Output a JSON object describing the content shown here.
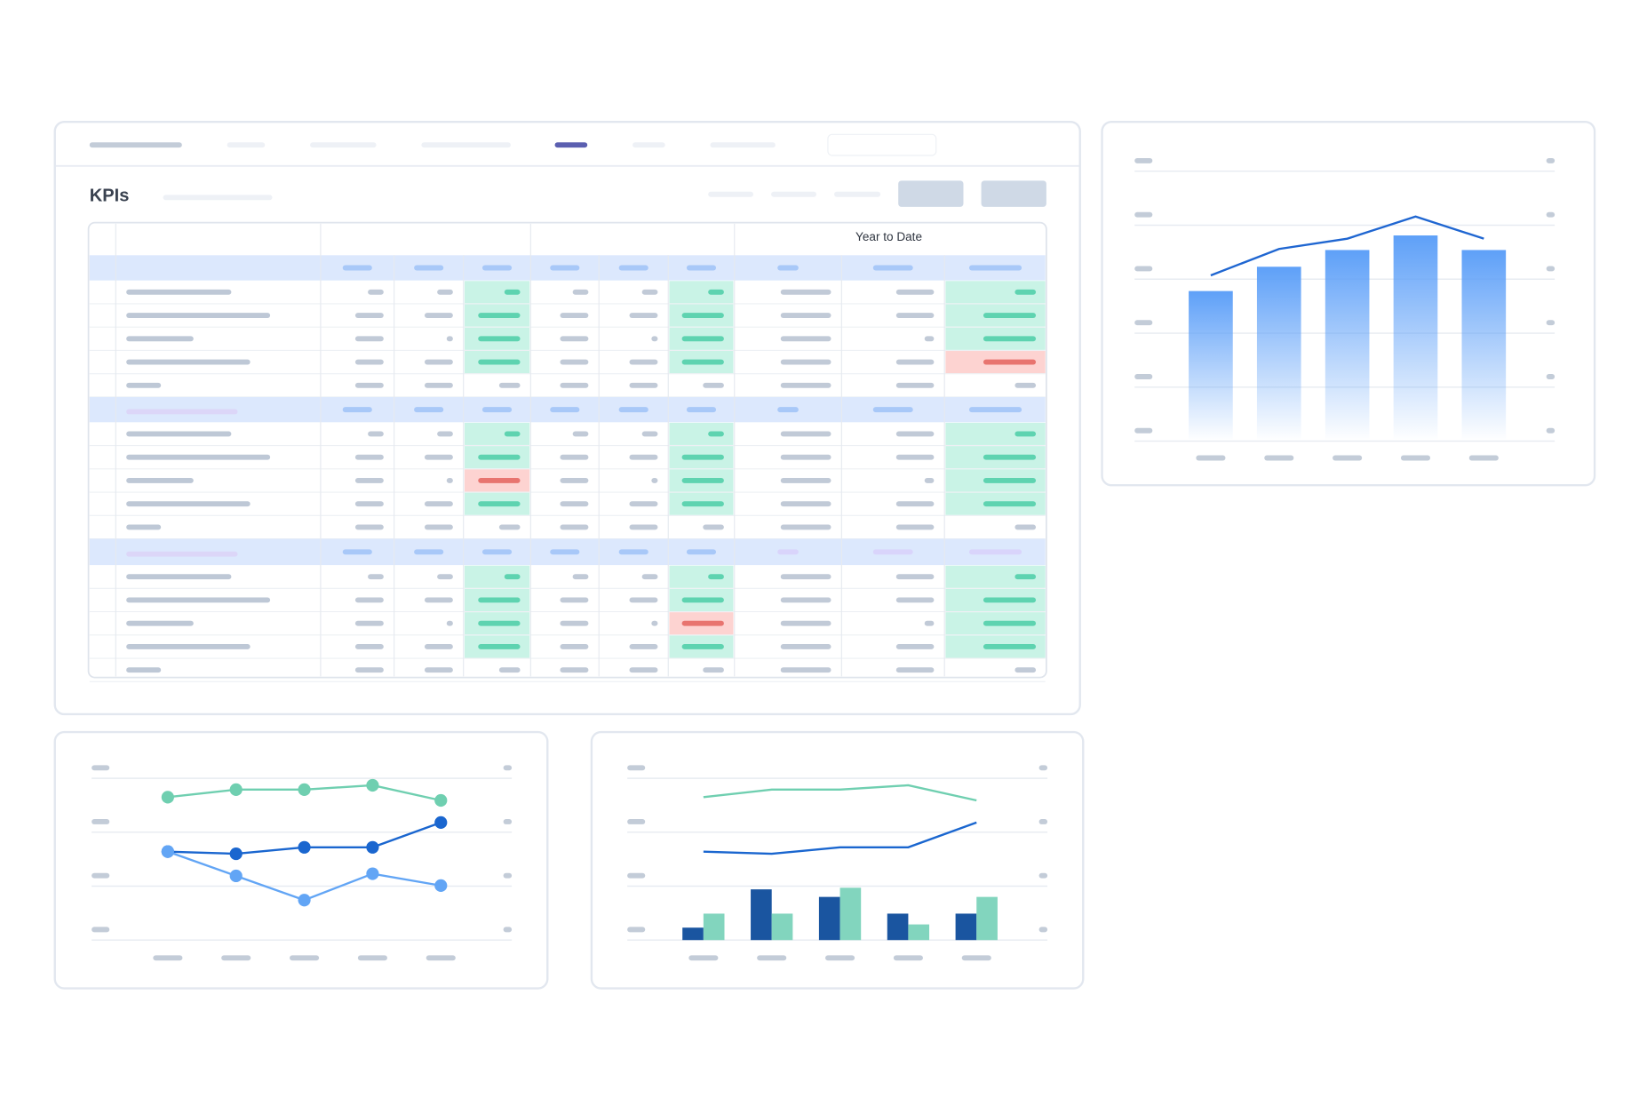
{
  "header": {
    "title": "KPIs"
  },
  "table": {
    "column_group": "Year to Date"
  },
  "chart_data": [
    {
      "type": "combo",
      "ylim": [
        0,
        5
      ],
      "yticks": [
        0,
        1,
        2,
        3,
        4,
        5
      ],
      "grid": true,
      "series": [
        {
          "type": "bar",
          "color": "#5ea0f8",
          "values": [
            2.78,
            3.23,
            3.54,
            3.81,
            3.54
          ]
        },
        {
          "type": "line",
          "color": "#1f66d1",
          "values": [
            3.07,
            3.56,
            3.75,
            4.16,
            3.75
          ]
        }
      ]
    },
    {
      "type": "line",
      "ylim": [
        0,
        3
      ],
      "yticks": [
        0,
        1,
        2,
        3
      ],
      "grid": true,
      "markers": true,
      "series": [
        {
          "color": "#6fcfb0",
          "values": [
            2.65,
            2.79,
            2.79,
            2.87,
            2.59
          ]
        },
        {
          "color": "#1a66cf",
          "values": [
            1.64,
            1.6,
            1.72,
            1.72,
            2.18
          ]
        },
        {
          "color": "#62a5f5",
          "values": [
            1.64,
            1.19,
            0.74,
            1.23,
            1.01
          ]
        }
      ]
    },
    {
      "type": "combo",
      "ylim": [
        0,
        3
      ],
      "yticks": [
        0,
        1,
        2,
        3
      ],
      "grid": true,
      "series": [
        {
          "type": "line",
          "color": "#6fcfb0",
          "values": [
            2.65,
            2.79,
            2.79,
            2.87,
            2.59
          ]
        },
        {
          "type": "line",
          "color": "#1a66cf",
          "values": [
            1.64,
            1.6,
            1.72,
            1.72,
            2.18
          ]
        },
        {
          "type": "bar",
          "color": "#1a55a0",
          "values": [
            0.23,
            0.94,
            0.8,
            0.49,
            0.49
          ]
        },
        {
          "type": "bar",
          "color": "#82d5be",
          "values": [
            0.49,
            0.49,
            0.97,
            0.29,
            0.8
          ]
        }
      ]
    }
  ]
}
